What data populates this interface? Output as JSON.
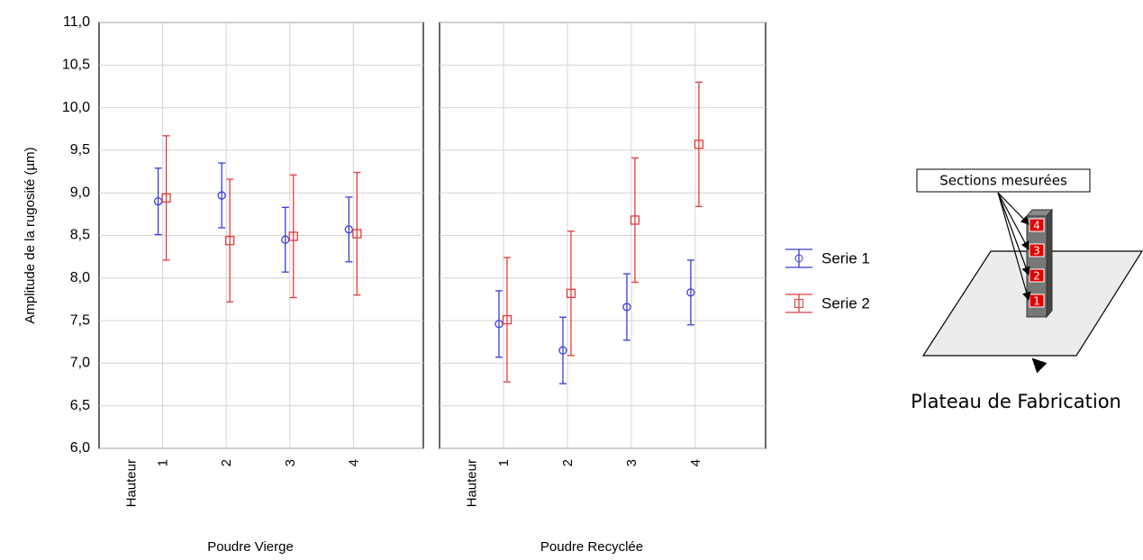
{
  "chart_data": [
    {
      "type": "errorbar",
      "x_title": "Poudre Vierge",
      "x_label": "Hauteur",
      "y_label": "Amplitude de la rugosité (µm)",
      "categories": [
        "1",
        "2",
        "3",
        "4"
      ],
      "ylim": [
        6,
        11
      ],
      "yticks": [
        {
          "value": 6,
          "label": "6,0"
        },
        {
          "value": 6.5,
          "label": "6,5"
        },
        {
          "value": 7,
          "label": "7,0"
        },
        {
          "value": 7.5,
          "label": "7,5"
        },
        {
          "value": 8,
          "label": "8,0"
        },
        {
          "value": 8.5,
          "label": "8,5"
        },
        {
          "value": 9,
          "label": "9,0"
        },
        {
          "value": 9.5,
          "label": "9,5"
        },
        {
          "value": 10,
          "label": "10,0"
        },
        {
          "value": 10.5,
          "label": "10,5"
        },
        {
          "value": 11,
          "label": "11,0"
        }
      ],
      "grid": true,
      "series": [
        {
          "name": "Serie 1",
          "color": "#3b3bd9",
          "marker": "circle",
          "values": [
            8.9,
            8.97,
            8.45,
            8.57
          ],
          "errors": [
            0.39,
            0.38,
            0.38,
            0.38
          ]
        },
        {
          "name": "Serie 2",
          "color": "#e23c3c",
          "marker": "square",
          "values": [
            8.94,
            8.44,
            8.49,
            8.52
          ],
          "errors": [
            0.73,
            0.72,
            0.72,
            0.72
          ]
        }
      ]
    },
    {
      "type": "errorbar",
      "x_title": "Poudre Recyclée",
      "x_label": "Hauteur",
      "categories": [
        "1",
        "2",
        "3",
        "4"
      ],
      "ylim": [
        6,
        11
      ],
      "yticks": [
        6,
        6.5,
        7,
        7.5,
        8,
        8.5,
        9,
        9.5,
        10,
        10.5,
        11
      ],
      "grid": true,
      "series": [
        {
          "color": "#3b3bd9",
          "marker": "circle",
          "values": [
            7.46,
            7.15,
            7.66,
            7.83
          ],
          "errors": [
            0.39,
            0.39,
            0.39,
            0.38
          ]
        },
        {
          "color": "#e23c3c",
          "marker": "square",
          "values": [
            7.51,
            7.82,
            8.68,
            9.57
          ],
          "errors": [
            0.73,
            0.73,
            0.73,
            0.73
          ]
        }
      ]
    }
  ],
  "diagram": {
    "callout": "Sections mesurées",
    "sections": [
      "4",
      "3",
      "2",
      "1"
    ],
    "label": "Plateau de Fabrication"
  }
}
